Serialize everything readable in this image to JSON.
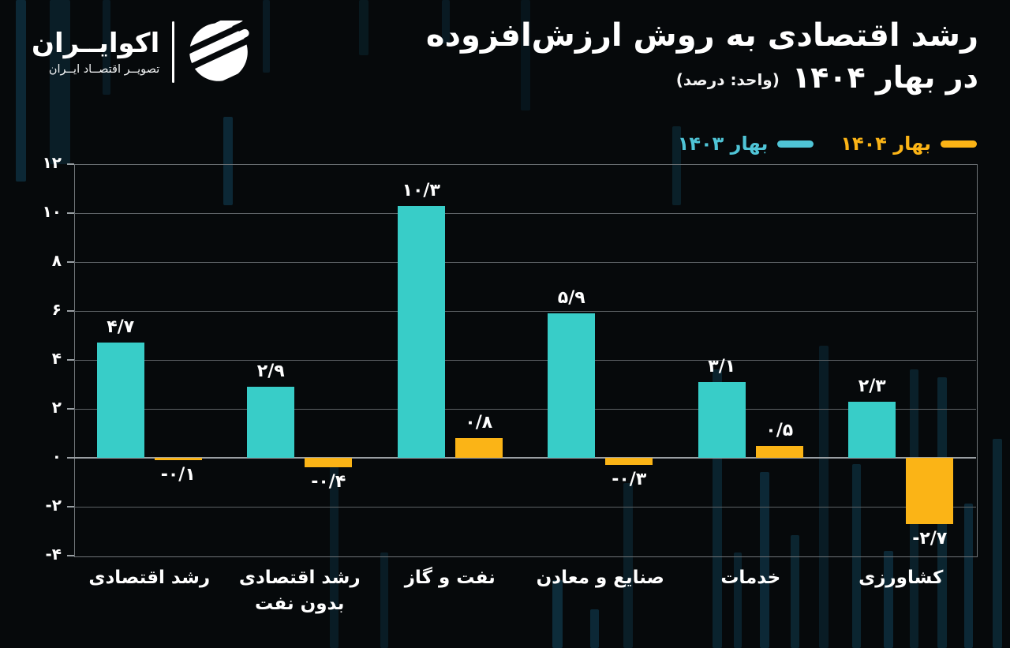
{
  "logo": {
    "name": "اکوایــران",
    "tagline": "تصویــر اقتصــاد ایــران"
  },
  "title": {
    "line1": "رشد اقتصادی به روش ارزش‌افزوده",
    "line2": "در بهار ۱۴۰۴",
    "unit": "(واحد: درصد)"
  },
  "legend": {
    "items": [
      {
        "label": "بهار ۱۴۰۴",
        "color": "#FBB416"
      },
      {
        "label": "بهار ۱۴۰۳",
        "color": "#4FC4D6"
      }
    ]
  },
  "colors": {
    "series_1403": "#38CDC8",
    "series_1404": "#FBB416",
    "background": "#06090b",
    "grid": "#5d6266",
    "zero_line": "#9aa0a4",
    "text": "#ffffff"
  },
  "chart_data": {
    "type": "bar",
    "title": "رشد اقتصادی به روش ارزش‌افزوده در بهار ۱۴۰۴",
    "unit": "درصد",
    "categories": [
      "رشد اقتصادی",
      "رشد اقتصادی بدون نفت",
      "نفت و گاز",
      "صنایع و معادن",
      "خدمات",
      "کشاورزی"
    ],
    "category_display": [
      "رشد اقتصادی",
      "رشد اقتصادی<br>بدون نفت",
      "نفت و گاز",
      "صنایع و معادن",
      "خدمات",
      "کشاورزی"
    ],
    "series": [
      {
        "name": "بهار ۱۴۰۳",
        "color": "#38CDC8",
        "values": [
          4.7,
          2.9,
          10.3,
          5.9,
          3.1,
          2.3
        ],
        "labels": [
          "۴/۷",
          "۲/۹",
          "۱۰/۳",
          "۵/۹",
          "۳/۱",
          "۲/۳"
        ]
      },
      {
        "name": "بهار ۱۴۰۴",
        "color": "#FBB416",
        "values": [
          -0.1,
          -0.4,
          0.8,
          -0.3,
          0.5,
          -2.7
        ],
        "labels": [
          "-۰/۱",
          "-۰/۴",
          "۰/۸",
          "-۰/۳",
          "۰/۵",
          "-۲/۷"
        ]
      }
    ],
    "xlabel": "",
    "ylabel": "",
    "ylim": [
      -4,
      12
    ],
    "yticks": {
      "values": [
        12,
        10,
        8,
        6,
        4,
        2,
        0,
        -2,
        -4
      ],
      "labels": [
        "۱۲",
        "۱۰",
        "۸",
        "۶",
        "۴",
        "۲",
        "۰",
        "-۲",
        "-۴"
      ]
    },
    "grid": true,
    "legend_position": "top-right"
  }
}
